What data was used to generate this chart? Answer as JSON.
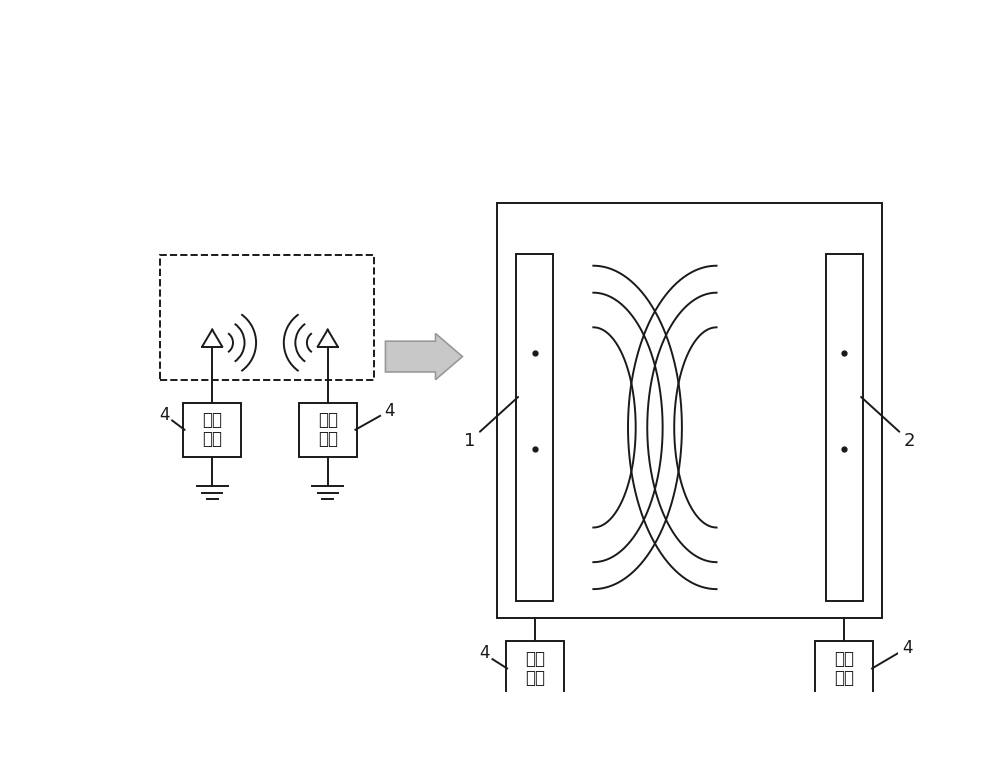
{
  "bg_color": "#ffffff",
  "line_color": "#1a1a1a",
  "arrow_fill": "#c8c8c8",
  "arrow_edge": "#999999",
  "label_1": "1",
  "label_2": "2",
  "label_4": "4",
  "box_text": "通信\n装置",
  "font_size_box": 12,
  "font_size_label": 12,
  "lw": 1.4
}
